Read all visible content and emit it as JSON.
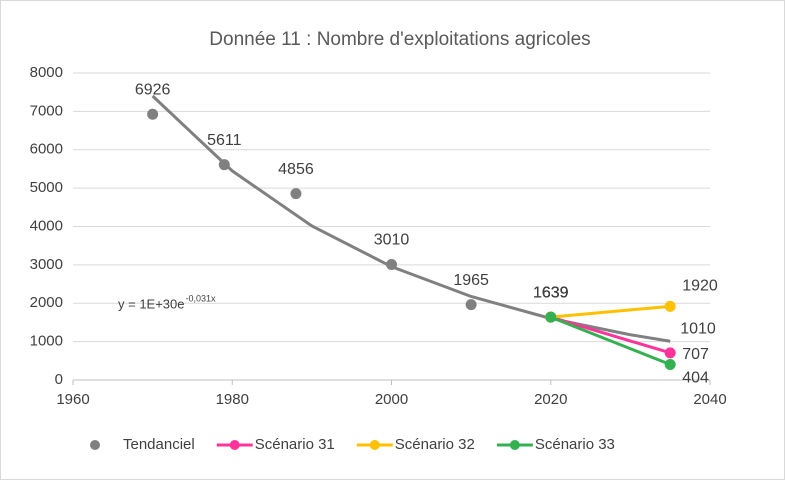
{
  "chart_data": {
    "type": "scatter",
    "title": "Donnée 11 : Nombre d'exploitations agricoles",
    "xlim": [
      1960,
      2040
    ],
    "xticks": [
      1960,
      1980,
      2000,
      2020,
      2040
    ],
    "ylim": [
      0,
      8000
    ],
    "yticks": [
      0,
      1000,
      2000,
      3000,
      4000,
      5000,
      6000,
      7000,
      8000
    ],
    "grid": true,
    "legend": "bottom",
    "series": [
      {
        "name": "Tendanciel",
        "color": "#808080",
        "mode": "markers",
        "x": [
          1970,
          1979,
          1988,
          2000,
          2010,
          2020
        ],
        "values": [
          6926,
          5611,
          4856,
          3010,
          1965,
          1639
        ]
      },
      {
        "name": "Scénario 31",
        "color": "#ff3399",
        "mode": "lines",
        "x": [
          2020,
          2035
        ],
        "values": [
          1639,
          707
        ]
      },
      {
        "name": "Scénario 32",
        "color": "#ffc000",
        "mode": "lines",
        "x": [
          2020,
          2035
        ],
        "values": [
          1639,
          1920
        ]
      },
      {
        "name": "Scénario 33",
        "color": "#33b050",
        "mode": "lines",
        "x": [
          2020,
          2035
        ],
        "values": [
          1639,
          404
        ]
      }
    ],
    "trendline": {
      "color": "#808080",
      "x": [
        1970,
        1980,
        1990,
        2000,
        2010,
        2020,
        2030,
        2035
      ],
      "values": [
        7400,
        5449,
        4013,
        2955,
        2176,
        1603,
        1180,
        1010
      ],
      "end_label": "1010",
      "equation": "y = 1E+30e",
      "exponent": "-0,031x"
    }
  }
}
